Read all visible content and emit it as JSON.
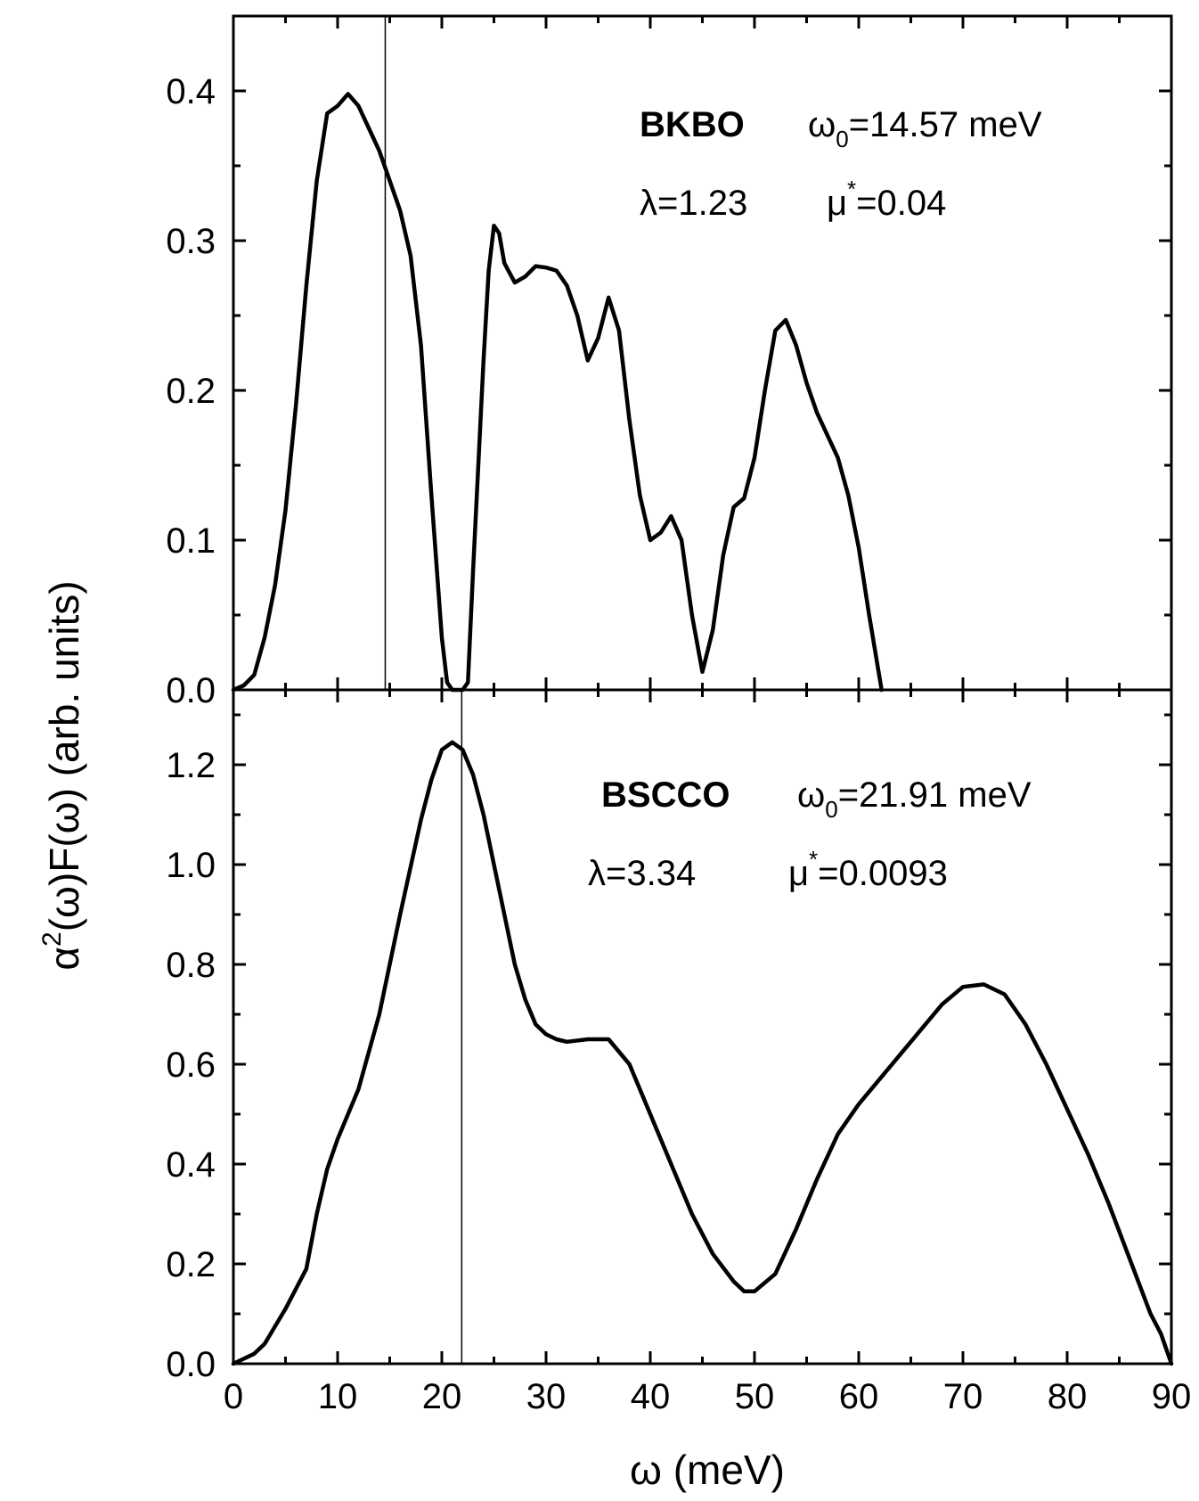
{
  "chart_data": [
    {
      "type": "line",
      "panel": "top",
      "annotation": {
        "material": "BKBO",
        "omega0_symbol": "ω",
        "omega0_sub": "0",
        "omega0_value": "=14.57 meV",
        "lambda_text": "λ=1.23",
        "mu_symbol": "μ",
        "mu_sup": "*",
        "mu_value": "=0.04"
      },
      "ylim": [
        0,
        0.45
      ],
      "yticks": [
        "0.0",
        "0.1",
        "0.2",
        "0.3",
        "0.4"
      ],
      "ytick_values": [
        0,
        0.1,
        0.2,
        0.3,
        0.4
      ],
      "vline_x": 14.57,
      "series": [
        {
          "x": [
            0,
            1,
            2,
            3,
            4,
            5,
            6,
            7,
            8,
            9,
            10,
            11,
            12,
            13,
            14,
            15,
            16,
            17,
            18,
            19,
            20,
            20.5,
            21,
            22,
            22.5,
            23,
            24,
            24.5,
            25,
            25.5,
            26,
            27,
            28,
            29,
            30,
            31,
            32,
            33,
            34,
            35,
            36,
            37,
            38,
            39,
            40,
            41,
            42,
            43,
            44,
            45,
            46,
            47,
            48,
            49,
            50,
            51,
            52,
            53,
            54,
            55,
            56,
            57,
            58,
            59,
            60,
            61,
            62.2
          ],
          "y": [
            0,
            0.003,
            0.01,
            0.035,
            0.07,
            0.12,
            0.19,
            0.27,
            0.34,
            0.385,
            0.39,
            0.398,
            0.39,
            0.375,
            0.36,
            0.34,
            0.32,
            0.29,
            0.23,
            0.13,
            0.035,
            0.005,
            0,
            0,
            0.005,
            0.08,
            0.22,
            0.28,
            0.31,
            0.305,
            0.285,
            0.272,
            0.276,
            0.283,
            0.282,
            0.28,
            0.27,
            0.25,
            0.22,
            0.235,
            0.262,
            0.24,
            0.18,
            0.13,
            0.1,
            0.105,
            0.116,
            0.1,
            0.05,
            0.012,
            0.04,
            0.09,
            0.122,
            0.128,
            0.155,
            0.2,
            0.24,
            0.247,
            0.23,
            0.205,
            0.185,
            0.17,
            0.155,
            0.13,
            0.095,
            0.05,
            0
          ]
        }
      ]
    },
    {
      "type": "line",
      "panel": "bottom",
      "annotation": {
        "material": "BSCCO",
        "omega0_symbol": "ω",
        "omega0_sub": "0",
        "omega0_value": "=21.91 meV",
        "lambda_text": "λ=3.34",
        "mu_symbol": "μ",
        "mu_sup": "*",
        "mu_value": "=0.0093"
      },
      "ylim": [
        0,
        1.35
      ],
      "yticks": [
        "0.0",
        "0.2",
        "0.4",
        "0.6",
        "0.8",
        "1.0",
        "1.2"
      ],
      "ytick_values": [
        0,
        0.2,
        0.4,
        0.6,
        0.8,
        1.0,
        1.2
      ],
      "vline_x": 21.91,
      "series": [
        {
          "x": [
            0,
            1,
            2,
            3,
            4,
            5,
            6,
            7,
            8,
            9,
            10,
            12,
            14,
            16,
            18,
            19,
            20,
            21,
            22,
            23,
            24,
            25,
            26,
            27,
            28,
            29,
            30,
            31,
            32,
            34,
            36,
            38,
            40,
            42,
            44,
            46,
            48,
            49,
            50,
            52,
            54,
            56,
            58,
            60,
            62,
            64,
            66,
            68,
            70,
            72,
            74,
            76,
            78,
            80,
            82,
            84,
            86,
            88,
            89,
            90
          ],
          "y": [
            0,
            0.01,
            0.02,
            0.04,
            0.075,
            0.11,
            0.15,
            0.19,
            0.3,
            0.39,
            0.45,
            0.55,
            0.7,
            0.9,
            1.09,
            1.17,
            1.23,
            1.245,
            1.23,
            1.18,
            1.1,
            1.0,
            0.9,
            0.8,
            0.73,
            0.68,
            0.66,
            0.65,
            0.645,
            0.65,
            0.65,
            0.6,
            0.5,
            0.4,
            0.3,
            0.22,
            0.165,
            0.145,
            0.145,
            0.18,
            0.27,
            0.37,
            0.46,
            0.52,
            0.57,
            0.62,
            0.67,
            0.72,
            0.755,
            0.76,
            0.74,
            0.68,
            0.6,
            0.51,
            0.42,
            0.32,
            0.21,
            0.1,
            0.06,
            0
          ]
        }
      ]
    }
  ],
  "shared": {
    "xlim": [
      0,
      90
    ],
    "xticks": [
      "0",
      "10",
      "20",
      "30",
      "40",
      "50",
      "60",
      "70",
      "80",
      "90"
    ],
    "xtick_values": [
      0,
      10,
      20,
      30,
      40,
      50,
      60,
      70,
      80,
      90
    ],
    "xlabel": "ω   (meV)",
    "ylabel_alpha": "α",
    "ylabel_sup": "2",
    "ylabel_rest": "(ω)F(ω)    (arb. units)"
  }
}
